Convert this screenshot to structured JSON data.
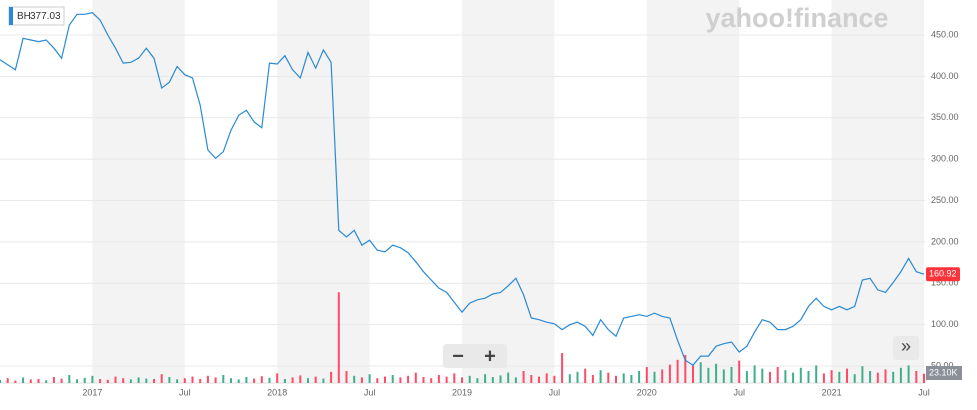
{
  "chart_data": {
    "type": "line",
    "logo": "yahoo!finance",
    "controls": [
      "−",
      "+"
    ],
    "scroll": "»",
    "categories": [
      null,
      null,
      null,
      null,
      null,
      null,
      null,
      null,
      null,
      null,
      null,
      null,
      "2017",
      null,
      null,
      null,
      null,
      null,
      null,
      null,
      null,
      null,
      null,
      null,
      "Jul",
      null,
      null,
      null,
      null,
      null,
      null,
      null,
      null,
      null,
      null,
      null,
      "2018",
      null,
      null,
      null,
      null,
      null,
      null,
      null,
      null,
      null,
      null,
      null,
      "Jul",
      null,
      null,
      null,
      null,
      null,
      null,
      null,
      null,
      null,
      null,
      null,
      "2019",
      null,
      null,
      null,
      null,
      null,
      null,
      null,
      null,
      null,
      null,
      null,
      "Jul",
      null,
      null,
      null,
      null,
      null,
      null,
      null,
      null,
      null,
      null,
      null,
      "2020",
      null,
      null,
      null,
      null,
      null,
      null,
      null,
      null,
      null,
      null,
      null,
      "Jul",
      null,
      null,
      null,
      null,
      null,
      null,
      null,
      null,
      null,
      null,
      null,
      "2021",
      null,
      null,
      null,
      null,
      null,
      null,
      null,
      null,
      null,
      null,
      null,
      "Jul"
    ],
    "series": [
      {
        "name": "BH",
        "legend_value": 377.03,
        "last_label": "160.92",
        "color": "#2a8ad4",
        "values": [
          420,
          414,
          408,
          446,
          444,
          442,
          444,
          434,
          422,
          462,
          475,
          475,
          477,
          468,
          450,
          434,
          416,
          417,
          422,
          434,
          422,
          386,
          393,
          412,
          402,
          398,
          365,
          311,
          301,
          309,
          335,
          353,
          359,
          345,
          338,
          416,
          415,
          425,
          408,
          398,
          429,
          410,
          432,
          417,
          214,
          206,
          214,
          196,
          202,
          190,
          188,
          196,
          193,
          187,
          176,
          164,
          154,
          144,
          139,
          127,
          115,
          126,
          130,
          132,
          137,
          139,
          147,
          156,
          136,
          108,
          106,
          103,
          101,
          94,
          100,
          103,
          98,
          87,
          106,
          94,
          86,
          108,
          110,
          112,
          110,
          114,
          110,
          108,
          81,
          57,
          51,
          62,
          62,
          74,
          77,
          79,
          67,
          74,
          91,
          106,
          103,
          94,
          94,
          98,
          106,
          122,
          132,
          122,
          118,
          122,
          118,
          122,
          154,
          156,
          142,
          139,
          151,
          164,
          180,
          164,
          160.92
        ]
      },
      {
        "axis": "y2",
        "last_label": "23.10K",
        "up_color": "#3fae8a",
        "down_color": "#ff4a68",
        "values": [
          8,
          12,
          6,
          14,
          9,
          10,
          7,
          15,
          11,
          20,
          9,
          13,
          18,
          10,
          8,
          16,
          12,
          9,
          14,
          11,
          10,
          22,
          15,
          9,
          12,
          16,
          10,
          18,
          14,
          20,
          12,
          9,
          15,
          11,
          17,
          13,
          24,
          10,
          14,
          19,
          12,
          16,
          11,
          28,
          227,
          30,
          18,
          14,
          22,
          12,
          16,
          20,
          14,
          18,
          26,
          15,
          12,
          20,
          16,
          24,
          14,
          18,
          12,
          22,
          15,
          19,
          26,
          14,
          30,
          20,
          16,
          24,
          18,
          75,
          22,
          28,
          36,
          20,
          32,
          26,
          18,
          24,
          20,
          30,
          40,
          28,
          34,
          46,
          58,
          70,
          44,
          52,
          38,
          48,
          34,
          40,
          56,
          30,
          44,
          36,
          28,
          40,
          32,
          26,
          38,
          30,
          44,
          24,
          32,
          28,
          36,
          22,
          42,
          30,
          26,
          34,
          28,
          38,
          44,
          30,
          23.1
        ]
      }
    ],
    "ylim": [
      29.5,
      492.3
    ],
    "yticks": [
      {
        "value": 50,
        "label": "50.00"
      },
      {
        "value": 100,
        "label": "100.00"
      },
      {
        "value": 150,
        "label": "150.00"
      },
      {
        "value": 200,
        "label": "200.00"
      },
      {
        "value": 250,
        "label": "250.00"
      },
      {
        "value": 300,
        "label": "300.00"
      },
      {
        "value": 350,
        "label": "350.00"
      },
      {
        "value": 400,
        "label": "400.00"
      },
      {
        "value": 450,
        "label": "450.00"
      }
    ],
    "y2lim": [
      0,
      958
    ],
    "grid": true
  }
}
